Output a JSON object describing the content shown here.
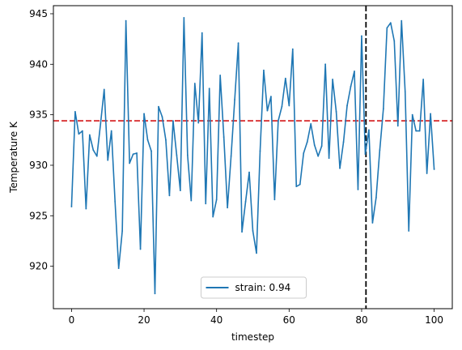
{
  "chart_data": {
    "type": "line",
    "title": "",
    "xlabel": "timestep",
    "ylabel": "Temperature K",
    "xlim": [
      -5,
      105
    ],
    "ylim": [
      915.8,
      945.8
    ],
    "xticks": [
      0,
      20,
      40,
      60,
      80,
      100
    ],
    "yticks": [
      920,
      925,
      930,
      935,
      940,
      945
    ],
    "grid": false,
    "legend_position": "lower center",
    "series": [
      {
        "name": "strain: 0.94",
        "color": "#1f77b4",
        "x": [
          0,
          1,
          2,
          3,
          4,
          5,
          6,
          7,
          8,
          9,
          10,
          11,
          12,
          13,
          14,
          15,
          16,
          17,
          18,
          19,
          20,
          21,
          22,
          23,
          24,
          25,
          26,
          27,
          28,
          29,
          30,
          31,
          32,
          33,
          34,
          35,
          36,
          37,
          38,
          39,
          40,
          41,
          42,
          43,
          44,
          45,
          46,
          47,
          48,
          49,
          50,
          51,
          52,
          53,
          54,
          55,
          56,
          57,
          58,
          59,
          60,
          61,
          62,
          63,
          64,
          65,
          66,
          67,
          68,
          69,
          70,
          71,
          72,
          73,
          74,
          75,
          76,
          77,
          78,
          79,
          80,
          81,
          82,
          83,
          84,
          85,
          86,
          87,
          88,
          89,
          90,
          91,
          92,
          93,
          94,
          95,
          96,
          97,
          98,
          99,
          100
        ],
        "values": [
          925.9,
          935.3,
          933.1,
          933.4,
          925.7,
          933.0,
          931.5,
          930.9,
          934.1,
          937.5,
          930.5,
          933.4,
          926.4,
          919.8,
          923.5,
          944.3,
          930.2,
          931.1,
          931.2,
          921.7,
          935.1,
          932.5,
          931.4,
          917.3,
          935.8,
          934.8,
          932.5,
          927.0,
          934.4,
          931.0,
          927.5,
          944.6,
          931.0,
          926.5,
          938.1,
          934.2,
          943.1,
          926.2,
          937.6,
          924.9,
          926.6,
          938.9,
          932.8,
          925.8,
          930.9,
          936.5,
          942.1,
          923.4,
          926.4,
          929.3,
          923.5,
          921.3,
          931.4,
          939.4,
          935.4,
          936.8,
          926.6,
          934.4,
          935.8,
          938.6,
          935.9,
          941.5,
          927.9,
          928.1,
          931.2,
          932.3,
          934.1,
          932.0,
          930.9,
          931.9,
          940.0,
          930.7,
          938.5,
          935.3,
          929.7,
          932.3,
          935.9,
          937.8,
          939.3,
          927.6,
          942.8,
          931.1,
          933.5,
          924.3,
          926.8,
          931.5,
          935.6,
          943.6,
          944.1,
          942.3,
          933.9,
          944.3,
          937.3,
          923.5,
          935.0,
          933.4,
          933.4,
          938.5,
          929.2,
          935.1,
          929.6
        ]
      }
    ],
    "reference_lines": [
      {
        "orientation": "horizontal",
        "value": 934.4,
        "color": "#d62728",
        "style": "dashed"
      },
      {
        "orientation": "vertical",
        "value": 81.2,
        "color": "#000000",
        "style": "dashed"
      }
    ]
  }
}
